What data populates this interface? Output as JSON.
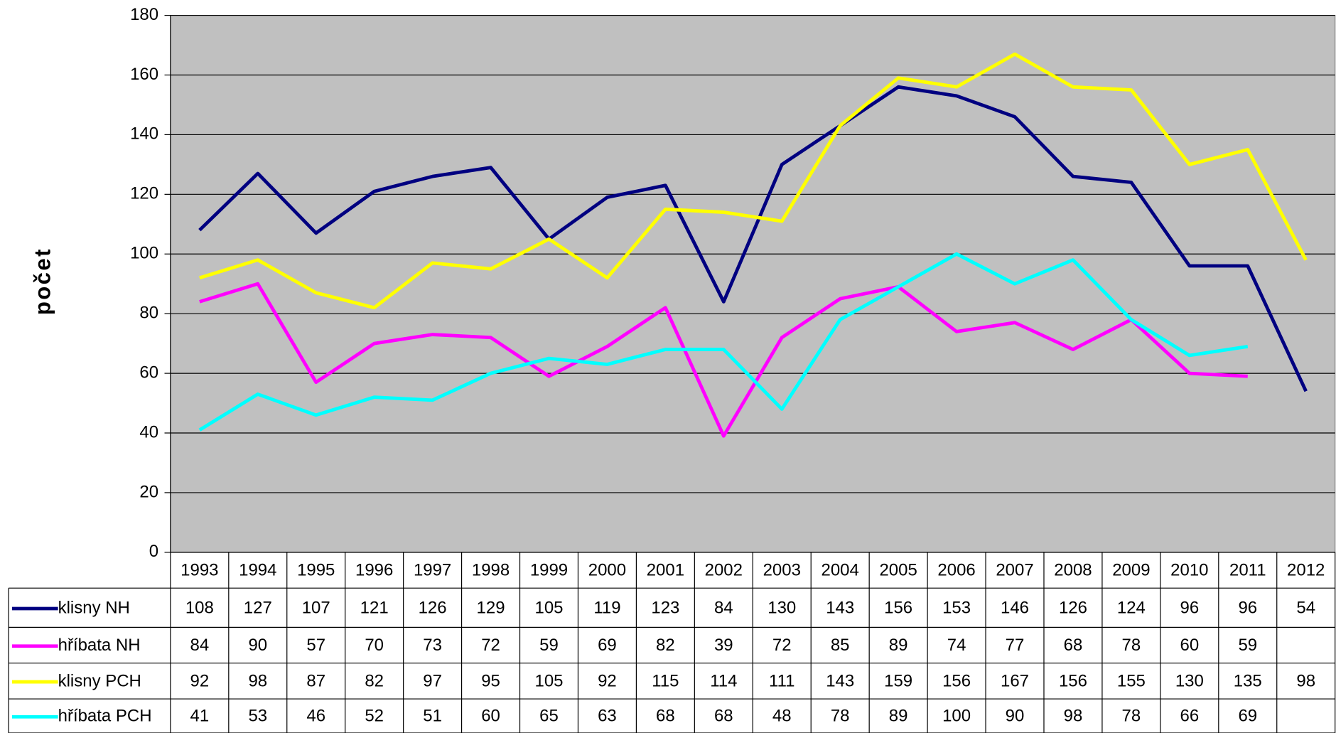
{
  "chart_data": {
    "type": "line",
    "y_label": "počet",
    "categories": [
      "1993",
      "1994",
      "1995",
      "1996",
      "1997",
      "1998",
      "1999",
      "2000",
      "2001",
      "2002",
      "2003",
      "2004",
      "2005",
      "2006",
      "2007",
      "2008",
      "2009",
      "2010",
      "2011",
      "2012"
    ],
    "series": [
      {
        "name": "klisny NH",
        "color": "#000080",
        "values": [
          108,
          127,
          107,
          121,
          126,
          129,
          105,
          119,
          123,
          84,
          130,
          143,
          156,
          153,
          146,
          126,
          124,
          96,
          96,
          54
        ]
      },
      {
        "name": "hříbata NH",
        "color": "#ff00ff",
        "values": [
          84,
          90,
          57,
          70,
          73,
          72,
          59,
          69,
          82,
          39,
          72,
          85,
          89,
          74,
          77,
          68,
          78,
          60,
          59,
          null
        ]
      },
      {
        "name": "klisny PCH",
        "color": "#ffff00",
        "values": [
          92,
          98,
          87,
          82,
          97,
          95,
          105,
          92,
          115,
          114,
          111,
          143,
          159,
          156,
          167,
          156,
          155,
          130,
          135,
          98
        ]
      },
      {
        "name": "hříbata PCH",
        "color": "#00ffff",
        "values": [
          41,
          53,
          46,
          52,
          51,
          60,
          65,
          63,
          68,
          68,
          48,
          78,
          89,
          100,
          90,
          98,
          78,
          66,
          69,
          null
        ]
      }
    ],
    "ylim": [
      0,
      180
    ],
    "yticks": [
      0,
      20,
      40,
      60,
      80,
      100,
      120,
      140,
      160,
      180
    ],
    "grid": true,
    "plot_background": "#c0c0c0"
  }
}
